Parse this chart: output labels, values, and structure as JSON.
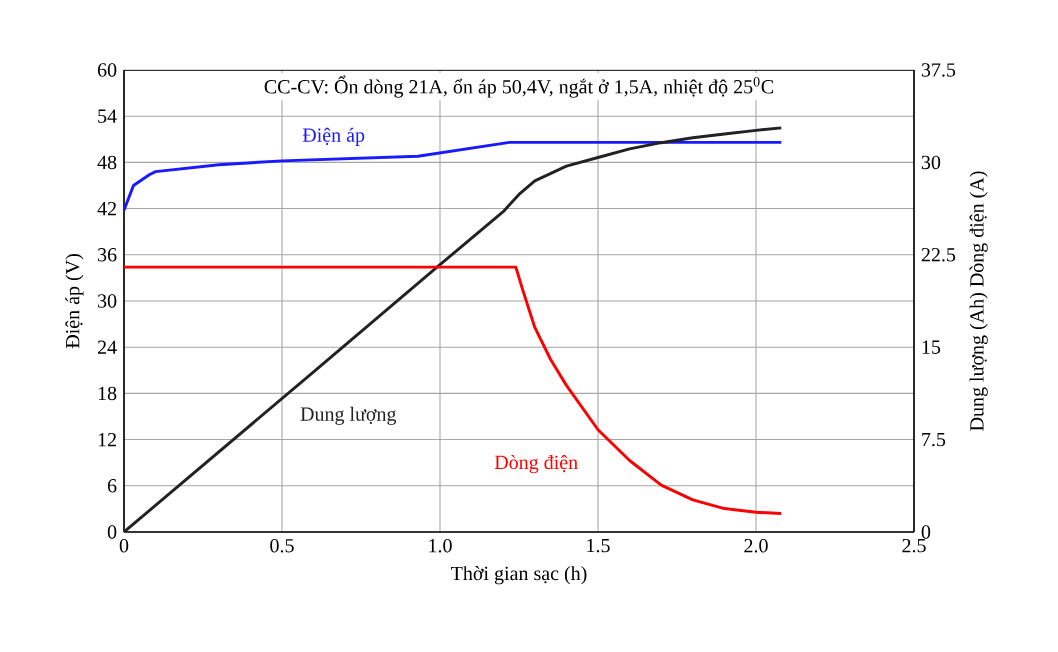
{
  "chart_data": {
    "type": "line",
    "title": "CC-CV: Ổn dòng 21A, ổn áp 50,4V, ngắt ở 1,5A, nhiệt độ 25$^{0}$C",
    "xlabel": "Thời gian sạc (h)",
    "ylabel": "Điện áp (V)",
    "y2label": "Dung lượng (Ah) Dòng điện (A)",
    "xlim": [
      0,
      2.5
    ],
    "xticks": [
      0,
      0.5,
      {
        "value": 1,
        "label": "1.0"
      },
      1.5,
      {
        "value": 2,
        "label": "2.0"
      },
      2.5
    ],
    "ylim": [
      0,
      60
    ],
    "yticks": [
      0,
      6,
      12,
      18,
      24,
      30,
      36,
      42,
      48,
      54,
      60
    ],
    "y2lim": [
      0,
      37.5
    ],
    "y2ticks": [
      0,
      7.5,
      15,
      22.5,
      30,
      37.5
    ],
    "grid": true,
    "series": [
      {
        "name": "Điện áp",
        "color": "#1a1aff",
        "x": [
          0,
          0.03,
          0.08,
          0.1,
          0.3,
          0.5,
          0.93,
          1.22,
          2.08
        ],
        "values": [
          41.8,
          45,
          46.4,
          46.8,
          47.7,
          48.2,
          48.8,
          50.6,
          50.6
        ]
      },
      {
        "name": "Dung lượng",
        "color": "#222222",
        "axis": "y2",
        "x": [
          0,
          0.6,
          1.0,
          1.2,
          1.25,
          1.3,
          1.4,
          1.5,
          1.6,
          1.7,
          1.8,
          1.9,
          2.0,
          2.08
        ],
        "values": [
          0,
          13.0,
          21.7,
          26.0,
          27.4,
          28.5,
          29.7,
          30.4,
          31.1,
          31.6,
          32.0,
          32.3,
          32.6,
          32.8
        ]
      },
      {
        "name": "Dòng điện",
        "color": "#ff0000",
        "axis": "y2",
        "x": [
          0,
          1.24,
          1.26,
          1.3,
          1.35,
          1.4,
          1.5,
          1.6,
          1.7,
          1.8,
          1.9,
          2.0,
          2.08
        ],
        "values": [
          21.5,
          21.5,
          19.8,
          16.6,
          14.0,
          11.9,
          8.3,
          5.8,
          3.8,
          2.6,
          1.9,
          1.6,
          1.5
        ]
      }
    ]
  }
}
